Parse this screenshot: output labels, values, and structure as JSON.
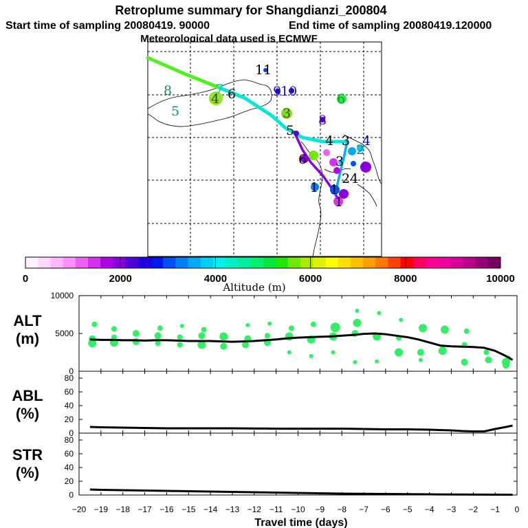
{
  "header": {
    "title": "Retroplume summary for Shangdianzi_200804",
    "start_sampling": "Start time of sampling 20080419. 90000",
    "end_sampling": "End time of sampling 20080419.120000",
    "met_data": "Meteorological data used is ECMWF"
  },
  "colorbar": {
    "label": "Altitude (m)",
    "ticks": [
      "0",
      "2000",
      "4000",
      "6000",
      "8000",
      "10000"
    ],
    "tick_values": [
      0,
      2000,
      4000,
      6000,
      8000,
      10000
    ],
    "colors": [
      "#fff0ff",
      "#ffd8ff",
      "#ffb8ff",
      "#ff90ff",
      "#f060f8",
      "#d830f0",
      "#b000e8",
      "#8800e0",
      "#5000d8",
      "#2000e0",
      "#0018f0",
      "#0050f8",
      "#0080f8",
      "#00a8f8",
      "#00d0f8",
      "#00f0f0",
      "#00f0c8",
      "#00f0a0",
      "#00f070",
      "#00e840",
      "#20e800",
      "#70e800",
      "#b0e800",
      "#e0f000",
      "#ffff00",
      "#ffe000",
      "#ffc000",
      "#ffa000",
      "#ff7800",
      "#ff4000",
      "#ff0000",
      "#ff0060",
      "#ff0090",
      "#f000a0",
      "#d80098",
      "#b80088",
      "#980078",
      "#780060"
    ]
  },
  "map": {
    "labels": [
      {
        "t": "11",
        "c": "#000000"
      },
      {
        "t": "8",
        "c": "#1a8a5a"
      },
      {
        "t": "7",
        "c": "#00c8b0"
      },
      {
        "t": "6",
        "c": "#000000"
      },
      {
        "t": "4",
        "c": "#404040"
      },
      {
        "t": "5",
        "c": "#00a070"
      },
      {
        "t": "9",
        "c": "#2020c0"
      },
      {
        "t": "10",
        "c": "#2020c0"
      },
      {
        "t": "6",
        "c": "#00a040"
      },
      {
        "t": "3",
        "c": "#405000"
      },
      {
        "t": "5",
        "c": "#000000"
      },
      {
        "t": "8",
        "c": "#5000a0"
      },
      {
        "t": "4",
        "c": "#000000"
      },
      {
        "t": "3",
        "c": "#000000"
      },
      {
        "t": "4",
        "c": "#0000c0"
      },
      {
        "t": "2",
        "c": "#0080a0"
      },
      {
        "t": "6",
        "c": "#000000"
      },
      {
        "t": "3",
        "c": "#000000"
      },
      {
        "t": "1",
        "c": "#000000"
      },
      {
        "t": "24",
        "c": "#000000"
      },
      {
        "t": "1",
        "c": "#000000"
      },
      {
        "t": "1",
        "c": "#000000"
      }
    ]
  },
  "chart_data": [
    {
      "type": "line",
      "panel": "ALT",
      "ylabel": "ALT\n(m)",
      "ylabel_line1": "ALT",
      "ylabel_line2": "(m)",
      "xlim": [
        -20,
        0
      ],
      "ylim": [
        0,
        10000
      ],
      "yticks": [
        0,
        5000,
        10000
      ],
      "x": [
        -19.5,
        -19,
        -18.5,
        -18,
        -17.5,
        -17,
        -16.5,
        -16,
        -15.5,
        -15,
        -14.5,
        -14,
        -13.5,
        -13,
        -12.5,
        -12,
        -11.5,
        -11,
        -10.5,
        -10,
        -9.5,
        -9,
        -8.5,
        -8,
        -7.5,
        -7,
        -6.5,
        -6,
        -5.5,
        -5,
        -4.5,
        -4,
        -3.5,
        -3,
        -2.5,
        -2,
        -1.5,
        -1,
        -0.5,
        -0.2
      ],
      "values": [
        4200,
        4150,
        4150,
        4100,
        4100,
        4050,
        4100,
        4100,
        4050,
        4000,
        4000,
        4000,
        3950,
        3900,
        3950,
        4000,
        4100,
        4200,
        4350,
        4450,
        4500,
        4550,
        4600,
        4700,
        4800,
        4950,
        5000,
        4900,
        4700,
        4500,
        4200,
        3800,
        3400,
        3300,
        3250,
        3200,
        3100,
        2700,
        2000,
        1500
      ],
      "scatter": [
        [
          -19.4,
          3700,
          6
        ],
        [
          -19.4,
          4300,
          5
        ],
        [
          -19.3,
          6200,
          4
        ],
        [
          -18.4,
          3800,
          6
        ],
        [
          -18.4,
          4500,
          4
        ],
        [
          -18.4,
          5600,
          4
        ],
        [
          -17.4,
          3900,
          5
        ],
        [
          -17.4,
          5000,
          5
        ],
        [
          -16.4,
          3700,
          4
        ],
        [
          -16.4,
          4700,
          5
        ],
        [
          -16.3,
          5700,
          4
        ],
        [
          -15.4,
          3500,
          4
        ],
        [
          -15.4,
          4500,
          4
        ],
        [
          -15.3,
          6000,
          3
        ],
        [
          -14.4,
          3500,
          6
        ],
        [
          -14.4,
          4700,
          5
        ],
        [
          -14.3,
          5500,
          4
        ],
        [
          -13.4,
          3300,
          5
        ],
        [
          -13.4,
          4600,
          6
        ],
        [
          -12.4,
          3500,
          5
        ],
        [
          -12.3,
          4300,
          5
        ],
        [
          -12.3,
          6100,
          3
        ],
        [
          -11.4,
          3800,
          5
        ],
        [
          -11.4,
          4700,
          4
        ],
        [
          -11.3,
          6300,
          3
        ],
        [
          -10.4,
          2500,
          3
        ],
        [
          -10.4,
          4600,
          6
        ],
        [
          -10.3,
          5700,
          4
        ],
        [
          -9.4,
          2000,
          3
        ],
        [
          -9.4,
          4200,
          6
        ],
        [
          -9.3,
          6200,
          4
        ],
        [
          -8.4,
          2500,
          3
        ],
        [
          -8.4,
          4600,
          6
        ],
        [
          -8.3,
          5800,
          7
        ],
        [
          -7.4,
          1200,
          3
        ],
        [
          -7.4,
          5000,
          5
        ],
        [
          -7.3,
          6400,
          6
        ],
        [
          -7.3,
          8000,
          3
        ],
        [
          -6.4,
          1300,
          3
        ],
        [
          -6.4,
          4600,
          6
        ],
        [
          -6.3,
          7700,
          3
        ],
        [
          -5.4,
          2500,
          6
        ],
        [
          -5.4,
          4400,
          4
        ],
        [
          -5.3,
          6800,
          3
        ],
        [
          -4.4,
          1500,
          3
        ],
        [
          -4.4,
          2500,
          5
        ],
        [
          -4.3,
          5700,
          6
        ],
        [
          -3.4,
          2700,
          6
        ],
        [
          -3.4,
          3200,
          3
        ],
        [
          -3.3,
          5500,
          6
        ],
        [
          -2.4,
          1200,
          5
        ],
        [
          -2.4,
          3500,
          4
        ],
        [
          -2.3,
          5300,
          4
        ],
        [
          -1.4,
          2500,
          4
        ],
        [
          -1.3,
          1500,
          5
        ],
        [
          -0.5,
          1200,
          6
        ],
        [
          -0.5,
          800,
          5
        ],
        [
          -0.4,
          1700,
          4
        ]
      ]
    },
    {
      "type": "line",
      "panel": "ABL",
      "ylabel_line1": "ABL",
      "ylabel_line2": "(%)",
      "xlim": [
        -20,
        0
      ],
      "ylim": [
        0,
        90
      ],
      "yticks": [
        0,
        20,
        40,
        60,
        80
      ],
      "x": [
        -19.5,
        -19,
        -18,
        -17,
        -16,
        -15,
        -14,
        -13,
        -12,
        -11,
        -10,
        -9,
        -8,
        -7,
        -6,
        -5,
        -4,
        -3,
        -2.5,
        -2,
        -1.5,
        -1,
        -0.5,
        -0.2
      ],
      "values": [
        9,
        8.5,
        8,
        7.5,
        7,
        7,
        7,
        7,
        6.8,
        6.5,
        6.5,
        6.5,
        6.5,
        6,
        5.5,
        5.5,
        5,
        4,
        3,
        2.5,
        2.5,
        6,
        9,
        11
      ]
    },
    {
      "type": "line",
      "panel": "STR",
      "ylabel_line1": "STR",
      "ylabel_line2": "(%)",
      "xlim": [
        -20,
        0
      ],
      "ylim": [
        0,
        90
      ],
      "yticks": [
        0,
        20,
        40,
        60,
        80
      ],
      "x": [
        -19.5,
        -19,
        -18,
        -17,
        -16,
        -15,
        -14,
        -13,
        -12,
        -11,
        -10,
        -9,
        -8,
        -7,
        -6,
        -5,
        -4,
        -3,
        -2,
        -1,
        -0.2
      ],
      "values": [
        8,
        7.5,
        7,
        6.5,
        6,
        5.5,
        5,
        4.5,
        4,
        3.5,
        3,
        2.5,
        2,
        1.8,
        1.5,
        1.2,
        1,
        0.8,
        0.6,
        0.5,
        0.4
      ],
      "xlabel": "Travel time (days)",
      "xticks": [
        -20,
        -19,
        -18,
        -17,
        -16,
        -15,
        -14,
        -13,
        -12,
        -11,
        -10,
        -9,
        -8,
        -7,
        -6,
        -5,
        -4,
        -3,
        -2,
        -1,
        0
      ]
    }
  ]
}
